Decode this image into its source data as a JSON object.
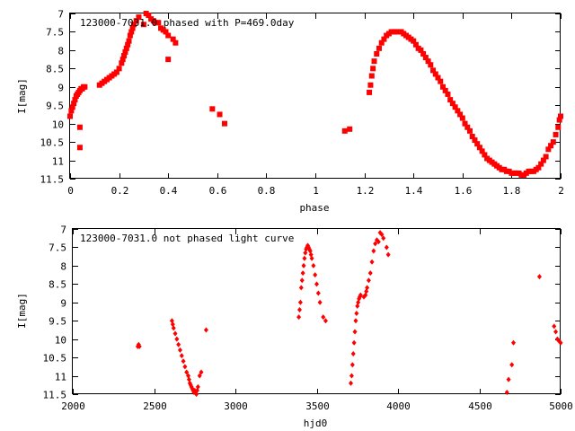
{
  "chart_data": [
    {
      "type": "scatter",
      "title": "123000-7031.0 phased with P=469.0day",
      "xlabel": "phase",
      "ylabel": "I[mag]",
      "xlim": [
        0,
        2
      ],
      "ylim": [
        11.5,
        7
      ],
      "y_inverted": true,
      "x_ticks": [
        "0",
        "0.2",
        "0.4",
        "0.6",
        "0.8",
        "1",
        "1.2",
        "1.4",
        "1.6",
        "1.8",
        "2"
      ],
      "x_tick_values": [
        0,
        0.2,
        0.4,
        0.6,
        0.8,
        1.0,
        1.2,
        1.4,
        1.6,
        1.8,
        2.0
      ],
      "y_ticks": [
        "7",
        "7.5",
        "8",
        "8.5",
        "9",
        "9.5",
        "10",
        "10.5",
        "11",
        "11.5"
      ],
      "y_tick_values": [
        7,
        7.5,
        8,
        8.5,
        9,
        9.5,
        10,
        10.5,
        11,
        11.5
      ],
      "marker": "square",
      "color": "#ff0000",
      "series": [
        {
          "x": [
            0.0,
            0.005,
            0.01,
            0.015,
            0.02,
            0.025,
            0.03,
            0.035,
            0.04,
            0.045,
            0.05,
            0.055,
            0.06,
            0.04,
            0.04,
            0.12,
            0.13,
            0.14,
            0.15,
            0.16,
            0.17,
            0.18,
            0.19,
            0.2,
            0.21,
            0.215,
            0.22,
            0.225,
            0.23,
            0.235,
            0.24,
            0.245,
            0.25,
            0.255,
            0.26,
            0.27,
            0.28,
            0.3,
            0.31,
            0.32,
            0.33,
            0.34,
            0.35,
            0.36,
            0.37,
            0.38,
            0.39,
            0.4,
            0.42,
            0.43,
            0.4,
            0.58,
            0.61,
            0.63,
            1.12,
            1.14,
            1.22,
            1.225,
            1.23,
            1.235,
            1.24,
            1.25,
            1.26,
            1.27,
            1.28,
            1.29,
            1.3,
            1.31,
            1.32,
            1.33,
            1.34,
            1.35,
            1.36,
            1.37,
            1.38,
            1.39,
            1.4,
            1.41,
            1.42,
            1.43,
            1.44,
            1.45,
            1.46,
            1.47,
            1.48,
            1.49,
            1.5,
            1.51,
            1.52,
            1.53,
            1.54,
            1.55,
            1.56,
            1.57,
            1.58,
            1.59,
            1.6,
            1.61,
            1.62,
            1.63,
            1.64,
            1.65,
            1.66,
            1.67,
            1.68,
            1.69,
            1.7,
            1.71,
            1.72,
            1.73,
            1.74,
            1.75,
            1.76,
            1.77,
            1.78,
            1.79,
            1.8,
            1.81,
            1.82,
            1.83,
            1.84,
            1.85,
            1.86,
            1.87,
            1.88,
            1.89,
            1.9,
            1.91,
            1.92,
            1.93,
            1.94,
            1.95,
            1.96,
            1.97,
            1.98,
            1.99,
            1.995,
            2.0
          ],
          "y": [
            9.8,
            9.65,
            9.55,
            9.45,
            9.35,
            9.25,
            9.2,
            9.15,
            9.1,
            9.05,
            9.05,
            9.0,
            9.0,
            10.1,
            10.65,
            8.95,
            8.9,
            8.85,
            8.8,
            8.75,
            8.7,
            8.65,
            8.6,
            8.5,
            8.35,
            8.25,
            8.15,
            8.05,
            7.95,
            7.85,
            7.75,
            7.6,
            7.5,
            7.4,
            7.3,
            7.2,
            7.1,
            7.3,
            7.0,
            7.05,
            7.15,
            7.2,
            7.25,
            7.25,
            7.4,
            7.45,
            7.5,
            7.6,
            7.7,
            7.8,
            8.25,
            9.6,
            9.75,
            10.0,
            10.2,
            10.15,
            9.15,
            8.95,
            8.7,
            8.5,
            8.3,
            8.1,
            7.95,
            7.8,
            7.7,
            7.6,
            7.55,
            7.5,
            7.5,
            7.5,
            7.5,
            7.5,
            7.55,
            7.6,
            7.65,
            7.7,
            7.75,
            7.85,
            7.95,
            8.0,
            8.1,
            8.2,
            8.3,
            8.4,
            8.55,
            8.65,
            8.75,
            8.85,
            9.0,
            9.1,
            9.2,
            9.35,
            9.45,
            9.55,
            9.65,
            9.75,
            9.85,
            10.0,
            10.1,
            10.2,
            10.35,
            10.45,
            10.55,
            10.65,
            10.75,
            10.85,
            10.95,
            11.0,
            11.05,
            11.1,
            11.15,
            11.2,
            11.25,
            11.25,
            11.3,
            11.3,
            11.35,
            11.35,
            11.35,
            11.35,
            11.4,
            11.4,
            11.35,
            11.3,
            11.3,
            11.3,
            11.25,
            11.2,
            11.1,
            11.0,
            10.9,
            10.7,
            10.6,
            10.5,
            10.3,
            10.1,
            9.9,
            9.8
          ]
        }
      ]
    },
    {
      "type": "scatter",
      "title": "123000-7031.0 not phased light curve",
      "xlabel": "hjd0",
      "ylabel": "I[mag]",
      "xlim": [
        2000,
        5000
      ],
      "ylim": [
        11.5,
        7
      ],
      "y_inverted": true,
      "x_ticks": [
        "2000",
        "2500",
        "3000",
        "3500",
        "4000",
        "4500",
        "5000"
      ],
      "x_tick_values": [
        2000,
        2500,
        3000,
        3500,
        4000,
        4500,
        5000
      ],
      "y_ticks": [
        "7",
        "7.5",
        "8",
        "8.5",
        "9",
        "9.5",
        "10",
        "10.5",
        "11",
        "11.5"
      ],
      "y_tick_values": [
        7,
        7.5,
        8,
        8.5,
        9,
        9.5,
        10,
        10.5,
        11,
        11.5
      ],
      "marker": "diamond",
      "color": "#ff0000",
      "series": [
        {
          "x": [
            2400,
            2405,
            2410,
            2610,
            2615,
            2620,
            2630,
            2640,
            2650,
            2660,
            2670,
            2680,
            2690,
            2700,
            2710,
            2715,
            2720,
            2725,
            2730,
            2735,
            2740,
            2745,
            2750,
            2755,
            2760,
            2765,
            2770,
            2780,
            2790,
            2820,
            3390,
            3395,
            3400,
            3405,
            3410,
            3415,
            3420,
            3425,
            3430,
            3435,
            3440,
            3445,
            3450,
            3455,
            3460,
            3465,
            3470,
            3480,
            3490,
            3500,
            3510,
            3520,
            3540,
            3555,
            3710,
            3715,
            3720,
            3725,
            3730,
            3735,
            3740,
            3745,
            3750,
            3755,
            3760,
            3765,
            3770,
            3790,
            3800,
            3805,
            3810,
            3820,
            3830,
            3840,
            3850,
            3860,
            3870,
            3880,
            3890,
            3900,
            3910,
            3930,
            3940,
            4670,
            4680,
            4700,
            4710,
            4870,
            4960,
            4970,
            4980,
            4990,
            5000
          ],
          "y": [
            10.2,
            10.15,
            10.2,
            9.5,
            9.6,
            9.7,
            9.85,
            10.0,
            10.15,
            10.3,
            10.45,
            10.6,
            10.75,
            10.9,
            11.0,
            11.1,
            11.2,
            11.25,
            11.3,
            11.35,
            11.4,
            11.45,
            11.4,
            11.45,
            11.5,
            11.4,
            11.3,
            11.0,
            10.9,
            9.75,
            9.4,
            9.2,
            9.0,
            8.6,
            8.4,
            8.2,
            8.0,
            7.8,
            7.65,
            7.55,
            7.5,
            7.45,
            7.5,
            7.55,
            7.6,
            7.7,
            7.8,
            8.0,
            8.25,
            8.5,
            8.75,
            9.0,
            9.4,
            9.5,
            11.2,
            11.0,
            10.7,
            10.4,
            10.1,
            9.8,
            9.5,
            9.3,
            9.1,
            9.0,
            8.9,
            8.85,
            8.8,
            8.85,
            8.8,
            8.7,
            8.6,
            8.4,
            8.2,
            7.9,
            7.6,
            7.4,
            7.3,
            7.35,
            7.1,
            7.15,
            7.25,
            7.5,
            7.7,
            11.45,
            11.1,
            10.7,
            10.1,
            8.3,
            9.65,
            9.8,
            10.0,
            10.05,
            10.1
          ]
        }
      ]
    }
  ]
}
